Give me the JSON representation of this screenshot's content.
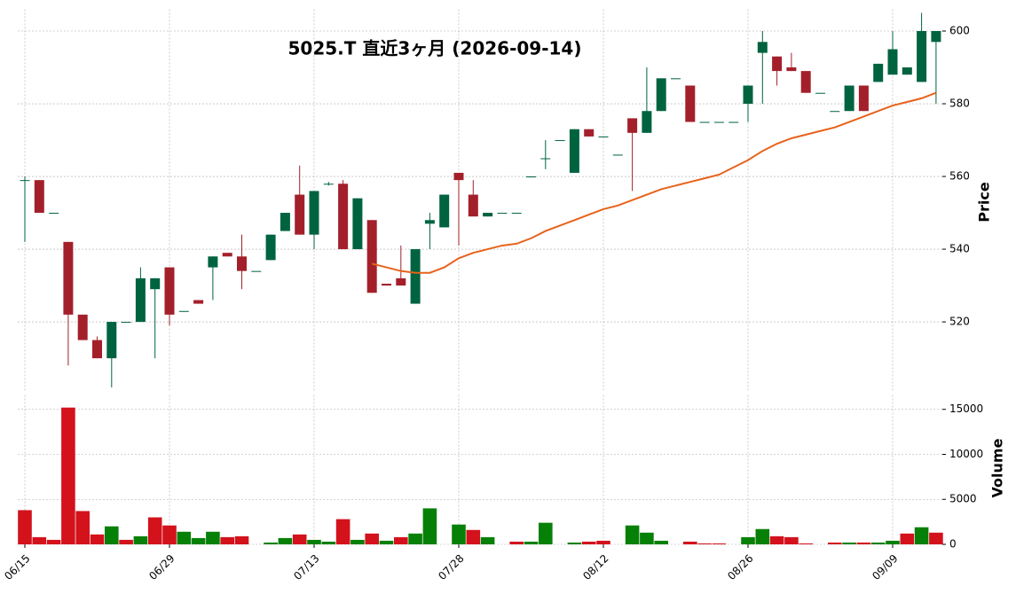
{
  "chart_data": {
    "type": "candlestick",
    "title": "5025.T  直近3ヶ月  (2026-09-14)",
    "ylabel": "Price",
    "categories": [
      "06/15",
      null,
      null,
      null,
      null,
      null,
      null,
      null,
      null,
      null,
      "06/29",
      null,
      null,
      null,
      null,
      null,
      null,
      null,
      null,
      null,
      "07/13",
      null,
      null,
      null,
      null,
      null,
      null,
      null,
      null,
      null,
      "07/28",
      null,
      null,
      null,
      null,
      null,
      null,
      null,
      null,
      null,
      "08/12",
      null,
      null,
      null,
      null,
      null,
      null,
      null,
      null,
      null,
      "08/26",
      null,
      null,
      null,
      null,
      null,
      null,
      null,
      null,
      null,
      "09/09",
      null,
      null,
      null
    ],
    "open": [
      559,
      559,
      550,
      542,
      522,
      515,
      510,
      520,
      520,
      529,
      535,
      523,
      526,
      535,
      539,
      538,
      534,
      537,
      545,
      555,
      544,
      558,
      558,
      540,
      548,
      530.5,
      532,
      525,
      547,
      546,
      561,
      555,
      549,
      550,
      550,
      560,
      565,
      570,
      561,
      573,
      571,
      566,
      576,
      572,
      578,
      587,
      585,
      575,
      575,
      575,
      580,
      594,
      593,
      590,
      589,
      583,
      578,
      578,
      585,
      586,
      588,
      588,
      586,
      597
    ],
    "high": [
      560,
      559,
      550,
      542,
      522,
      516,
      520,
      520,
      535,
      532,
      535,
      523,
      526,
      538,
      539,
      544,
      534,
      544,
      550,
      563,
      556,
      558.5,
      559,
      554,
      548,
      530.5,
      541,
      540,
      550,
      555,
      561,
      559,
      550,
      550,
      550,
      560,
      570,
      570,
      573,
      573,
      571,
      566,
      576,
      590,
      587,
      587,
      585,
      575,
      575,
      575,
      585,
      600,
      593,
      594,
      589,
      583,
      578,
      585,
      585,
      591,
      600,
      590,
      605,
      600
    ],
    "low": [
      542,
      550,
      550,
      508,
      515,
      510,
      502,
      520,
      520,
      510,
      519,
      523,
      525,
      526,
      538,
      529,
      534,
      537,
      545,
      544,
      540,
      557.5,
      540,
      540,
      528,
      530,
      530,
      525,
      540,
      546,
      541,
      549,
      549,
      550,
      550,
      560,
      562,
      570,
      561,
      571,
      571,
      566,
      556,
      572,
      578,
      587,
      575,
      575,
      575,
      575,
      575,
      580,
      585,
      589,
      583,
      583,
      578,
      578,
      578,
      586,
      588,
      588,
      586,
      580
    ],
    "close": [
      559,
      550,
      550,
      522,
      515,
      510,
      520,
      520,
      532,
      532,
      522,
      523,
      525,
      538,
      538,
      534,
      534,
      544,
      550,
      544,
      556,
      558,
      540,
      554,
      528,
      530,
      530,
      540,
      548,
      555,
      559,
      549,
      550,
      550,
      550,
      560,
      565,
      570,
      573,
      571,
      571,
      566,
      572,
      578,
      587,
      587,
      575,
      575,
      575,
      575,
      585,
      597,
      589,
      589,
      583,
      583,
      578,
      585,
      578,
      591,
      595,
      590,
      600,
      600
    ],
    "up_color": "#006340",
    "down_color": "#a3202a",
    "ylim": [
      501,
      606
    ],
    "yticks": [
      520,
      540,
      560,
      580,
      600
    ],
    "grid": true,
    "series": [
      {
        "color": "#e8621c",
        "values": [
          null,
          null,
          null,
          null,
          null,
          null,
          null,
          null,
          null,
          null,
          null,
          null,
          null,
          null,
          null,
          null,
          null,
          null,
          null,
          null,
          null,
          null,
          null,
          null,
          536,
          535,
          534,
          533.5,
          533.5,
          535,
          537.5,
          539,
          540,
          541,
          541.5,
          543,
          545,
          546.5,
          548,
          549.5,
          551,
          552,
          553.5,
          555,
          556.5,
          557.5,
          558.5,
          559.5,
          560.5,
          562.5,
          564.5,
          567,
          569,
          570.5,
          571.5,
          572.5,
          573.5,
          575,
          576.5,
          578,
          579.5,
          580.5,
          581.5,
          583
        ]
      }
    ],
    "volume": {
      "ylabel": "Volume",
      "ylim": [
        0,
        16600
      ],
      "yticks": [
        0,
        5000,
        10000,
        15000
      ],
      "values": [
        3800,
        800,
        500,
        15200,
        3700,
        1100,
        2000,
        500,
        900,
        3000,
        2100,
        1400,
        700,
        1400,
        800,
        900,
        0,
        200,
        700,
        1100,
        500,
        300,
        2800,
        500,
        1200,
        400,
        800,
        1200,
        4000,
        0,
        2200,
        1600,
        800,
        0,
        300,
        300,
        2400,
        0,
        200,
        300,
        400,
        0,
        2100,
        1300,
        400,
        0,
        300,
        100,
        100,
        0,
        800,
        1700,
        900,
        800,
        100,
        0,
        200,
        200,
        200,
        200,
        400,
        1200,
        1900,
        1300
      ],
      "colors": [
        "#d3121c",
        "#d3121c",
        "#d3121c",
        "#d3121c",
        "#d3121c",
        "#d3121c",
        "#078007",
        "#d3121c",
        "#078007",
        "#d3121c",
        "#d3121c",
        "#078007",
        "#078007",
        "#078007",
        "#d3121c",
        "#d3121c",
        "#d3121c",
        "#078007",
        "#078007",
        "#d3121c",
        "#078007",
        "#078007",
        "#d3121c",
        "#078007",
        "#d3121c",
        "#078007",
        "#d3121c",
        "#078007",
        "#078007",
        "#078007",
        "#078007",
        "#d3121c",
        "#078007",
        "#078007",
        "#d3121c",
        "#078007",
        "#078007",
        "#078007",
        "#078007",
        "#d3121c",
        "#d3121c",
        "#d3121c",
        "#078007",
        "#078007",
        "#078007",
        "#078007",
        "#d3121c",
        "#d3121c",
        "#d3121c",
        "#d3121c",
        "#078007",
        "#078007",
        "#d3121c",
        "#d3121c",
        "#d3121c",
        "#d3121c",
        "#d3121c",
        "#078007",
        "#d3121c",
        "#078007",
        "#078007",
        "#d3121c",
        "#078007",
        "#d3121c"
      ]
    }
  }
}
